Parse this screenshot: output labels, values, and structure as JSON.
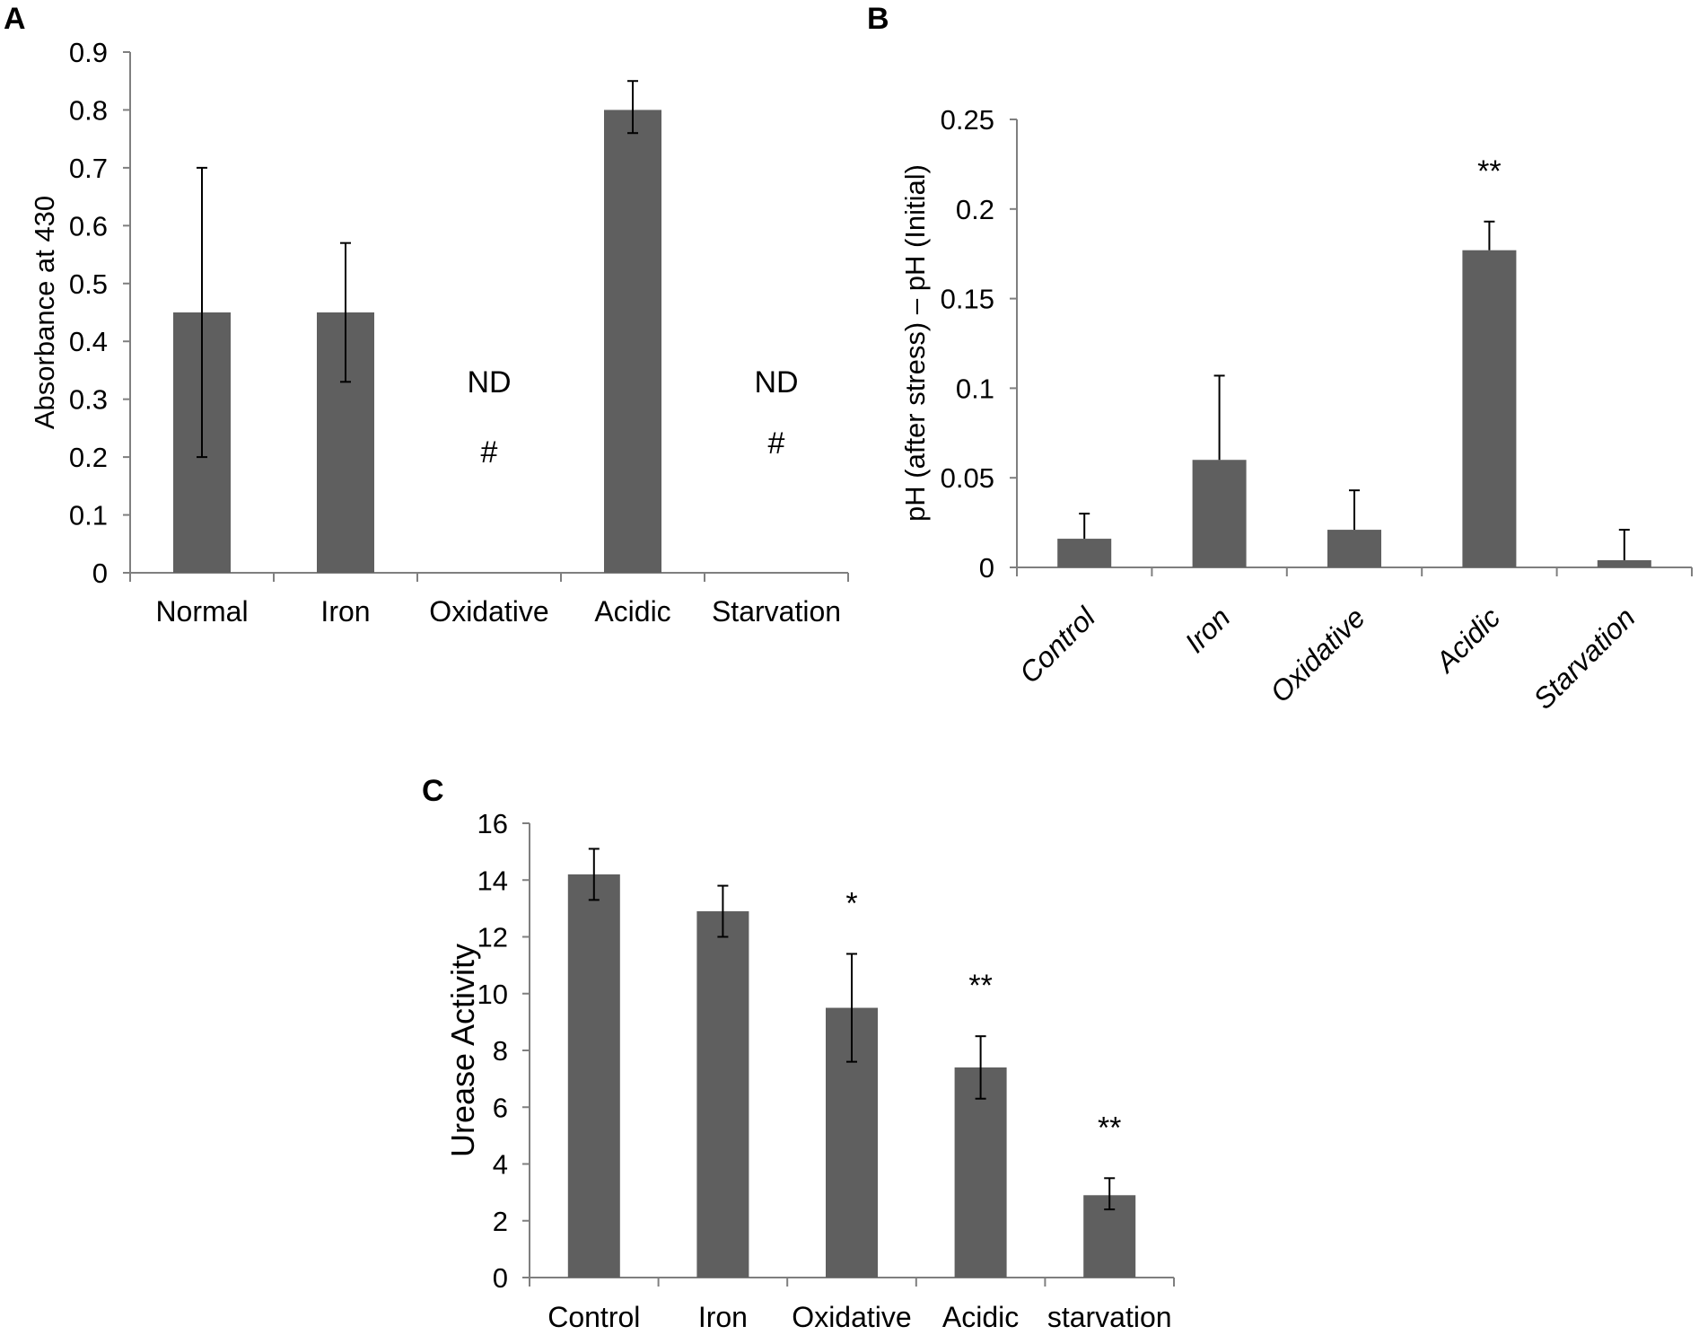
{
  "panels": {
    "a": "A",
    "b": "B",
    "c": "C"
  },
  "colors": {
    "bar": "#5f5f5f",
    "axis": "#7f7f7f",
    "error": "#000000"
  },
  "chart_data": [
    {
      "type": "bar",
      "panel": "A",
      "title": "",
      "xlabel": "",
      "ylabel": "Absorbance at 430",
      "ylim": [
        0,
        0.9
      ],
      "yticks": [
        0,
        0.1,
        0.2,
        0.3,
        0.4,
        0.5,
        0.6,
        0.7,
        0.8,
        0.9
      ],
      "ytick_labels": [
        "0",
        "0.1",
        "0.2",
        "0.3",
        "0.4",
        "0.5",
        "0.6",
        "0.7",
        "0.8",
        "0.9"
      ],
      "categories": [
        "Normal",
        "Iron",
        "Oxidative",
        "Acidic",
        "Starvation"
      ],
      "values": [
        0.45,
        0.45,
        null,
        0.8,
        null
      ],
      "error_low": [
        0.2,
        0.33,
        null,
        0.76,
        null
      ],
      "error_high": [
        0.7,
        0.57,
        null,
        0.85,
        null
      ],
      "annotations": [
        {
          "category": "Oxidative",
          "lines": [
            "ND",
            "#"
          ]
        },
        {
          "category": "Starvation",
          "lines": [
            "ND",
            "#"
          ]
        }
      ]
    },
    {
      "type": "bar",
      "panel": "B",
      "title": "",
      "xlabel": "",
      "ylabel": "pH (after stress) – pH (Initial)",
      "ylim": [
        0,
        0.25
      ],
      "yticks": [
        0,
        0.05,
        0.1,
        0.15,
        0.2,
        0.25
      ],
      "ytick_labels": [
        "0",
        "0.05",
        "0.1",
        "0.15",
        "0.2",
        "0.25"
      ],
      "categories": [
        "Control",
        "Iron",
        "Oxidative",
        "Acidic",
        "Starvation"
      ],
      "values": [
        0.016,
        0.06,
        0.021,
        0.177,
        0.004
      ],
      "error_high": [
        0.03,
        0.107,
        0.043,
        0.193,
        0.021
      ],
      "annotations": [
        {
          "category": "Acidic",
          "lines": [
            "**"
          ]
        }
      ]
    },
    {
      "type": "bar",
      "panel": "C",
      "title": "",
      "xlabel": "",
      "ylabel": "Urease  Activity",
      "ylim": [
        0,
        16
      ],
      "yticks": [
        0,
        2,
        4,
        6,
        8,
        10,
        12,
        14,
        16
      ],
      "ytick_labels": [
        "0",
        "2",
        "4",
        "6",
        "8",
        "10",
        "12",
        "14",
        "16"
      ],
      "categories": [
        "Control",
        "Iron",
        "Oxidative",
        "Acidic",
        "starvation"
      ],
      "values": [
        14.2,
        12.9,
        9.5,
        7.4,
        2.9
      ],
      "error_low": [
        13.3,
        12.0,
        7.6,
        6.3,
        2.4
      ],
      "error_high": [
        15.1,
        13.8,
        11.4,
        8.5,
        3.5
      ],
      "annotations": [
        {
          "category": "Oxidative",
          "lines": [
            "*"
          ]
        },
        {
          "category": "Acidic",
          "lines": [
            "**"
          ]
        },
        {
          "category": "starvation",
          "lines": [
            "**"
          ]
        }
      ]
    }
  ]
}
